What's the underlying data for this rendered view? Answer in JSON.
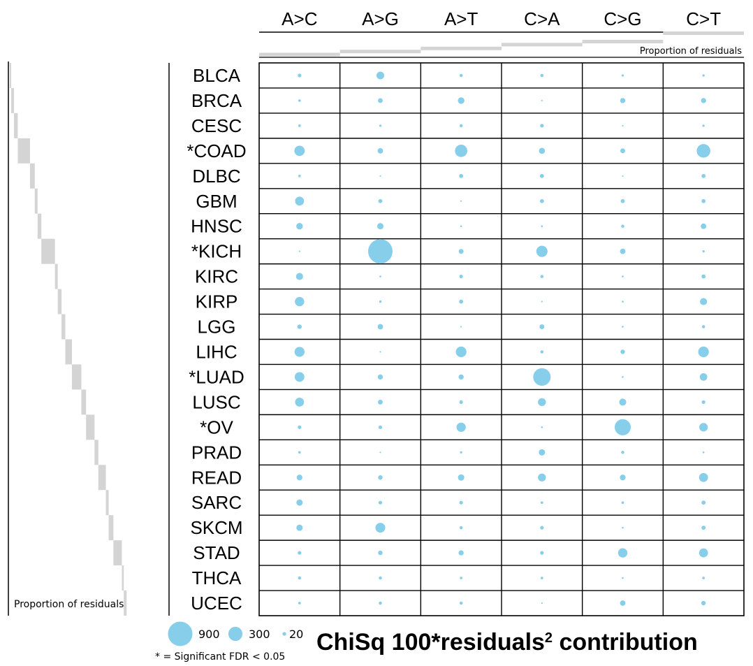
{
  "chart_data": {
    "type": "bubble-matrix",
    "title_main": "ChiSq 100*residuals",
    "title_superscript": "2",
    "title_suffix": " contribution",
    "columns": [
      "A>C",
      "A>G",
      "A>T",
      "C>A",
      "C>G",
      "C>T"
    ],
    "rows": [
      "BLCA",
      "BRCA",
      "CESC",
      "*COAD",
      "DLBC",
      "GBM",
      "HNSC",
      "*KICH",
      "KIRC",
      "KIRP",
      "LGG",
      "LIHC",
      "*LUAD",
      "LUSC",
      "*OV",
      "PRAD",
      "READ",
      "SARC",
      "SKCM",
      "STAD",
      "THCA",
      "UCEC"
    ],
    "values": [
      [
        20,
        90,
        15,
        15,
        8,
        8
      ],
      [
        10,
        35,
        65,
        3,
        40,
        40
      ],
      [
        10,
        8,
        15,
        20,
        3,
        8
      ],
      [
        160,
        45,
        230,
        55,
        35,
        280
      ],
      [
        10,
        3,
        25,
        25,
        3,
        25
      ],
      [
        120,
        25,
        3,
        25,
        25,
        25
      ],
      [
        65,
        60,
        5,
        5,
        15,
        45
      ],
      [
        3,
        900,
        35,
        190,
        45,
        8
      ],
      [
        75,
        5,
        20,
        15,
        5,
        25
      ],
      [
        130,
        8,
        25,
        3,
        5,
        75
      ],
      [
        30,
        45,
        3,
        35,
        5,
        15
      ],
      [
        150,
        3,
        170,
        15,
        30,
        170
      ],
      [
        140,
        40,
        40,
        460,
        5,
        85
      ],
      [
        120,
        35,
        20,
        95,
        75,
        20
      ],
      [
        20,
        20,
        130,
        5,
        390,
        110
      ],
      [
        10,
        3,
        8,
        60,
        15,
        5
      ],
      [
        50,
        30,
        60,
        95,
        50,
        120
      ],
      [
        60,
        20,
        20,
        10,
        10,
        25
      ],
      [
        60,
        145,
        15,
        20,
        5,
        25
      ],
      [
        20,
        30,
        40,
        20,
        130,
        120
      ],
      [
        15,
        15,
        10,
        10,
        5,
        10
      ],
      [
        10,
        15,
        15,
        3,
        45,
        30
      ]
    ],
    "column_proportion": [
      0.05,
      0.09,
      0.13,
      0.18,
      0.22,
      0.33
    ],
    "row_proportion": [
      0.005,
      0.015,
      0.02,
      0.065,
      0.025,
      0.015,
      0.02,
      0.072,
      0.015,
      0.02,
      0.02,
      0.035,
      0.05,
      0.025,
      0.045,
      0.02,
      0.04,
      0.015,
      0.025,
      0.045,
      0.01,
      0.015
    ],
    "proportion_label": "Proportion of residuals",
    "legend": {
      "entries": [
        {
          "label": "900",
          "value": 900
        },
        {
          "label": "300",
          "value": 300
        },
        {
          "label": "20",
          "value": 20
        }
      ],
      "note": "* = Significant FDR < 0.05"
    },
    "colors": {
      "bubble": "#87ceeb",
      "bar": "#d4d4d4",
      "grid": "#000000"
    }
  }
}
